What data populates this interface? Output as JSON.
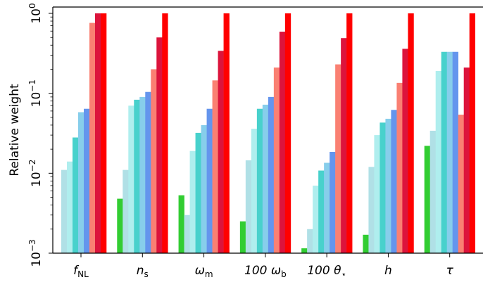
{
  "chart_data": {
    "type": "bar",
    "ylabel": "Relative weight",
    "yscale": "log",
    "ylim": [
      0.001,
      1.2
    ],
    "yticks": [
      {
        "base": "10",
        "exp": "−3"
      },
      {
        "base": "10",
        "exp": "−2"
      },
      {
        "base": "10",
        "exp": "−1"
      },
      {
        "base": "10",
        "exp": "0"
      }
    ],
    "categories": [
      {
        "main": "f",
        "sub": "NL"
      },
      {
        "main": "n",
        "sub": "s"
      },
      {
        "main": "ω",
        "sub": "m"
      },
      {
        "main": "100 ω",
        "sub": "b"
      },
      {
        "main": "100 θ",
        "sub": "⋆"
      },
      {
        "main": "h",
        "sub": ""
      },
      {
        "main": "τ",
        "sub": ""
      }
    ],
    "series": [
      {
        "color": "#32cd32",
        "values": [
          null,
          0.0048,
          0.0053,
          0.0025,
          0.00115,
          0.0017,
          0.022
        ]
      },
      {
        "color": "#b0e0e6",
        "values": [
          0.011,
          0.011,
          0.003,
          0.0145,
          0.002,
          0.012,
          0.034
        ]
      },
      {
        "color": "#afeeee",
        "values": [
          0.014,
          0.07,
          0.019,
          0.036,
          0.007,
          0.03,
          0.19
        ]
      },
      {
        "color": "#48d1cc",
        "values": [
          0.028,
          0.083,
          0.032,
          0.064,
          0.0108,
          0.043,
          0.33
        ]
      },
      {
        "color": "#87ceeb",
        "values": [
          0.058,
          0.09,
          0.04,
          0.072,
          0.0135,
          0.048,
          0.33
        ]
      },
      {
        "color": "#6495ed",
        "values": [
          0.064,
          0.104,
          0.064,
          0.09,
          0.0185,
          0.062,
          0.33
        ]
      },
      {
        "color": "#fa8072",
        "values": [
          0.76,
          0.2,
          0.145,
          0.21,
          0.23,
          0.135,
          0.054
        ]
      },
      {
        "color": "#dc143c",
        "values": [
          1.0,
          0.5,
          0.34,
          0.59,
          0.49,
          0.36,
          0.21
        ]
      },
      {
        "color": "#ff0000",
        "values": [
          1.0,
          1.0,
          1.0,
          1.0,
          1.0,
          1.0,
          1.0
        ]
      }
    ]
  }
}
